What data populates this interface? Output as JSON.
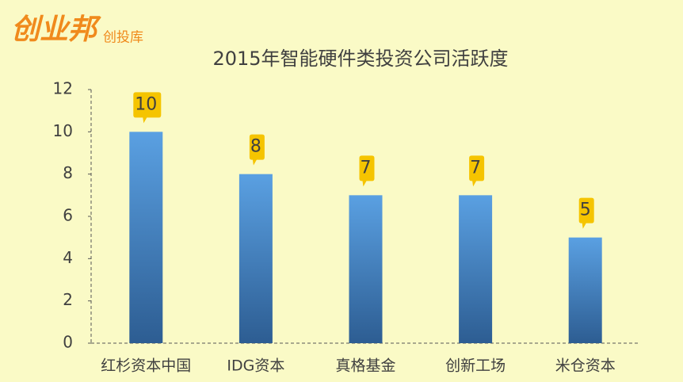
{
  "logo": {
    "brand": "创业邦",
    "sub": "创投库"
  },
  "chart_data": {
    "type": "bar",
    "title": "2015年智能硬件类投资公司活跃度",
    "categories": [
      "红杉资本中国",
      "IDG资本",
      "真格基金",
      "创新工场",
      "米仓资本"
    ],
    "values": [
      10,
      8,
      7,
      7,
      5
    ],
    "color": "#4a8fd6",
    "ylim": [
      0,
      12
    ],
    "yticks": [
      0,
      2,
      4,
      6,
      8,
      10,
      12
    ],
    "grid": false
  }
}
